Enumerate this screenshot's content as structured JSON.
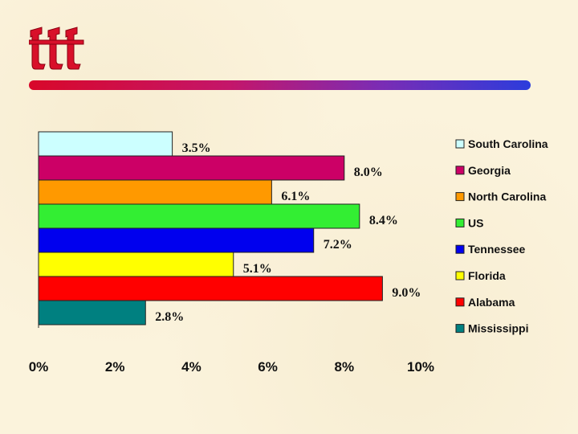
{
  "chart_data": {
    "type": "bar",
    "orientation": "horizontal",
    "categories": [
      "South Carolina",
      "Georgia",
      "North Carolina",
      "US",
      "Tennessee",
      "Florida",
      "Alabama",
      "Mississippi"
    ],
    "values": [
      3.5,
      8.0,
      6.1,
      8.4,
      7.2,
      5.1,
      9.0,
      2.8
    ],
    "value_labels": [
      "3.5%",
      "8.0%",
      "6.1%",
      "8.4%",
      "7.2%",
      "5.1%",
      "9.0%",
      "2.8%"
    ],
    "colors": [
      "#ccffff",
      "#cc0066",
      "#ff9900",
      "#33ee33",
      "#0000ee",
      "#ffff00",
      "#ff0000",
      "#008080"
    ],
    "xlim": [
      0,
      10
    ],
    "xticks": [
      0,
      2,
      4,
      6,
      8,
      10
    ],
    "xtick_labels": [
      "0%",
      "2%",
      "4%",
      "6%",
      "8%",
      "10%"
    ],
    "legend_position": "right",
    "grid": false
  }
}
